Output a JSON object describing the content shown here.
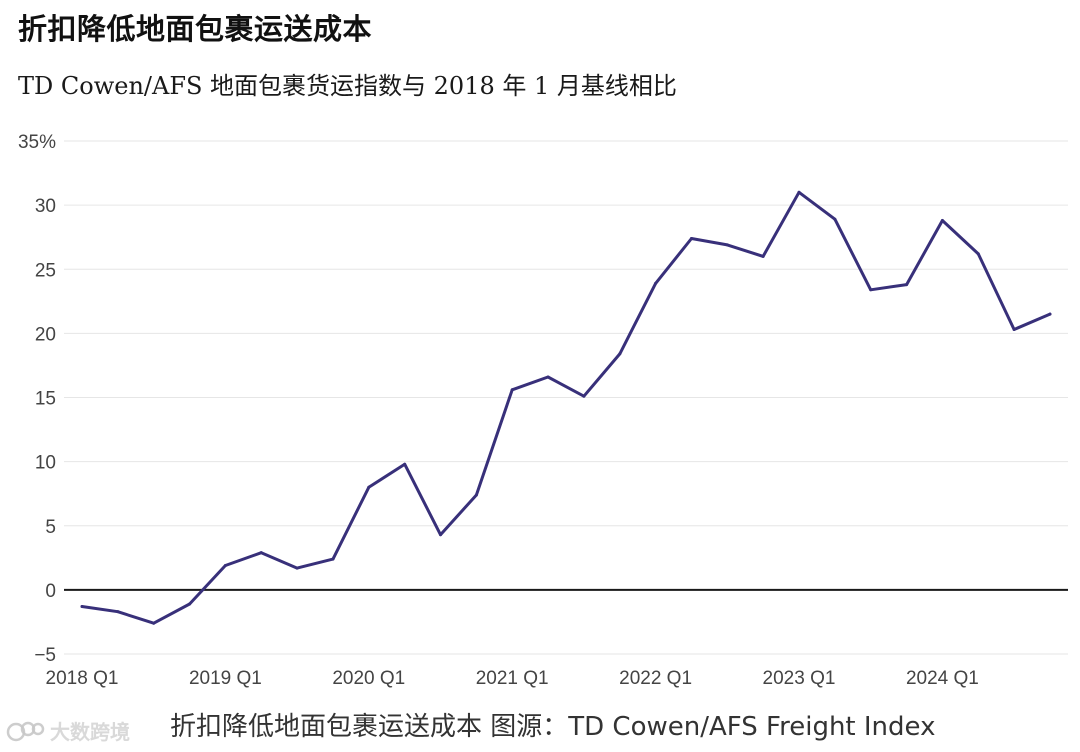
{
  "title": "折扣降低地面包裹运送成本",
  "subtitle": "TD Cowen/AFS 地面包裹货运指数与 2018 年 1 月基线相比",
  "caption": "折扣降低地面包裹运送成本 图源：TD Cowen/AFS Freight Index",
  "watermark": {
    "text": "大数跨境",
    "logo_icon": "watermark-logo-icon"
  },
  "colors": {
    "line": "#38307a",
    "zero_line": "#1a1a1a",
    "grid": "#e6e6e6",
    "tick_text": "#444444"
  },
  "chart_data": {
    "type": "line",
    "title": "折扣降低地面包裹运送成本",
    "subtitle": "TD Cowen/AFS 地面包裹货运指数与 2018 年 1 月基线相比",
    "xlabel": "",
    "ylabel": "",
    "ylim": [
      -5,
      35
    ],
    "y_ticks": [
      -5,
      0,
      5,
      10,
      15,
      20,
      25,
      30,
      35
    ],
    "y_tick_labels": [
      "−5",
      "0",
      "5",
      "10",
      "15",
      "20",
      "25",
      "30",
      "35%"
    ],
    "x_tick_labels": [
      "2018 Q1",
      "2019 Q1",
      "2020 Q1",
      "2021 Q1",
      "2022 Q1",
      "2023 Q1",
      "2024 Q1"
    ],
    "x_tick_positions": [
      0,
      4,
      8,
      12,
      16,
      20,
      24
    ],
    "grid": true,
    "x": [
      "2018 Q1",
      "2018 Q2",
      "2018 Q3",
      "2018 Q4",
      "2019 Q1",
      "2019 Q2",
      "2019 Q3",
      "2019 Q4",
      "2020 Q1",
      "2020 Q2",
      "2020 Q3",
      "2020 Q4",
      "2021 Q1",
      "2021 Q2",
      "2021 Q3",
      "2021 Q4",
      "2022 Q1",
      "2022 Q2",
      "2022 Q3",
      "2022 Q4",
      "2023 Q1",
      "2023 Q2",
      "2023 Q3",
      "2023 Q4",
      "2024 Q1",
      "2024 Q2",
      "2024 Q3",
      "2024 Q4"
    ],
    "series": [
      {
        "values": [
          -1.3,
          -1.7,
          -2.6,
          -1.1,
          1.9,
          2.9,
          1.7,
          2.4,
          8.0,
          9.8,
          4.3,
          7.4,
          15.6,
          16.6,
          15.1,
          18.4,
          23.9,
          27.4,
          26.9,
          26.0,
          31.0,
          28.9,
          23.4,
          23.8,
          28.8,
          26.2,
          20.3,
          21.5
        ]
      }
    ]
  }
}
